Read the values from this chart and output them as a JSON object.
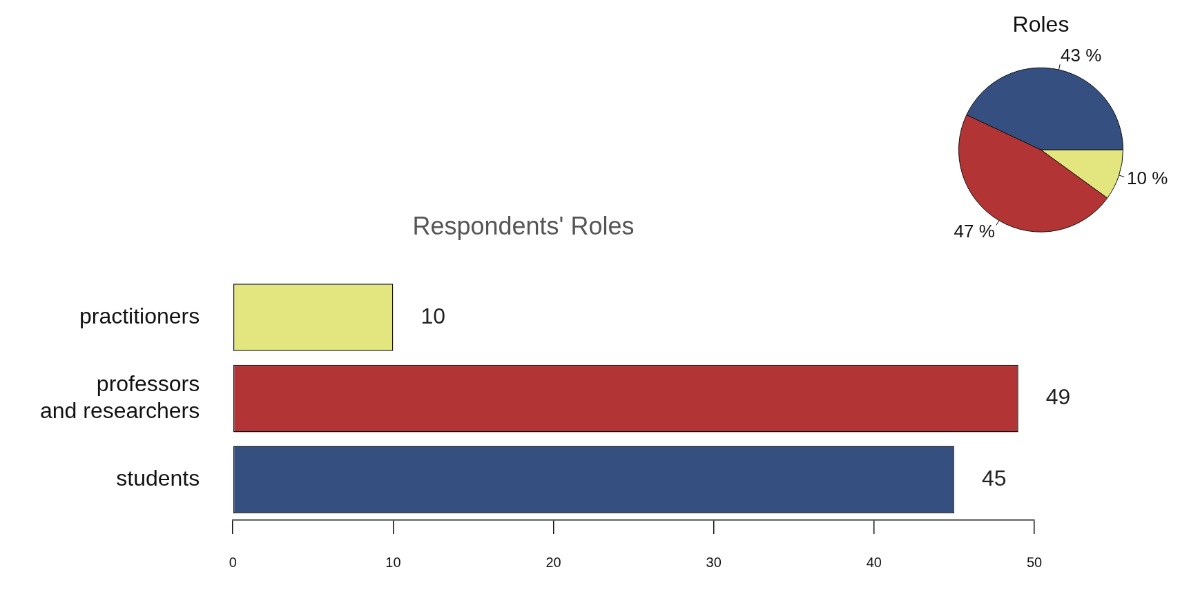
{
  "chart_data": [
    {
      "type": "bar",
      "title": "Respondents' Roles",
      "orientation": "horizontal",
      "categories": [
        "practitioners",
        "professors\nand researchers",
        "students"
      ],
      "values": [
        10,
        49,
        45
      ],
      "colors": [
        "#e3e57e",
        "#b33434",
        "#344f80"
      ],
      "xlim": [
        0,
        50
      ],
      "xticks": [
        0,
        10,
        20,
        30,
        40,
        50
      ],
      "grid": false,
      "data_labels": true
    },
    {
      "type": "pie",
      "title": "Roles",
      "categories": [
        null,
        null,
        null
      ],
      "values": [
        43,
        10,
        47
      ],
      "colors": [
        "#344f80",
        "#e3e57e",
        "#b33434"
      ],
      "value_labels": [
        "43 %",
        "10 %",
        "47 %"
      ]
    }
  ]
}
